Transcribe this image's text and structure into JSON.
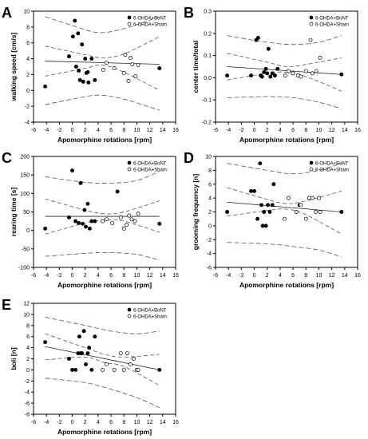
{
  "legend": {
    "bont": "6-OHDA+BoNT",
    "sham": "6-OHDA+Sham"
  },
  "colors": {
    "bont": "#000000",
    "sham": "#ffffff",
    "stroke": "#000000",
    "fit": "#222222",
    "ci": "#555555"
  },
  "chart_data": [
    {
      "type": "scatter",
      "panel": "A",
      "xlabel": "Apomorphine rotations [rpm]",
      "ylabel": "walking speed [cm/s]",
      "xlim": [
        -6,
        16
      ],
      "ylim": [
        -4,
        10
      ],
      "xticks": [
        -6,
        -4,
        -2,
        0,
        2,
        4,
        6,
        8,
        10,
        12,
        14,
        16
      ],
      "yticks": [
        -4,
        -2,
        0,
        2,
        4,
        6,
        8,
        10
      ],
      "ytick_labels": [
        "-4",
        "-2",
        "0",
        "2",
        "4",
        "6",
        "8",
        "10"
      ],
      "legend_position": "top-right",
      "series": [
        {
          "name": "6-OHDA+BoNT",
          "x": [
            -4.2,
            -0.5,
            0.1,
            0.4,
            0.6,
            0.9,
            1.0,
            1.2,
            1.5,
            1.7,
            2.0,
            2.2,
            2.4,
            2.5,
            3.0,
            3.5,
            13.5
          ],
          "y": [
            0.5,
            4.3,
            6.8,
            8.8,
            3.0,
            7.2,
            2.5,
            1.3,
            5.8,
            1.1,
            4.0,
            2.2,
            2.3,
            1.0,
            4.0,
            1.3,
            2.8
          ]
        },
        {
          "name": "6-OHDA+Sham",
          "x": [
            4.8,
            5.3,
            6.5,
            8.0,
            8.2,
            8.7,
            9.0,
            9.3,
            9.8,
            10.2
          ],
          "y": [
            2.6,
            3.5,
            2.8,
            2.2,
            4.5,
            1.2,
            4.1,
            3.3,
            1.8,
            3.2
          ]
        }
      ],
      "fit": [
        [
          -4.2,
          3.7
        ],
        [
          13.5,
          3.3
        ]
      ],
      "ci_upper": [
        [
          -4.2,
          9.3
        ],
        [
          0,
          8.2
        ],
        [
          4,
          7.3
        ],
        [
          8,
          7.8
        ],
        [
          13.5,
          9.3
        ]
      ],
      "ci_lower": [
        [
          -4.2,
          -1.8
        ],
        [
          0,
          -1.1
        ],
        [
          4,
          -0.6
        ],
        [
          8,
          -1.1
        ],
        [
          13.5,
          -2.5
        ]
      ],
      "mean_upper": [
        [
          -4.2,
          5.6
        ],
        [
          2,
          4.5
        ],
        [
          4.7,
          4.1
        ],
        [
          8,
          4.6
        ],
        [
          13.5,
          6.8
        ]
      ],
      "mean_lower": [
        [
          -4.2,
          1.8
        ],
        [
          2,
          2.8
        ],
        [
          4.7,
          3.2
        ],
        [
          8,
          2.3
        ],
        [
          13.5,
          0.0
        ]
      ]
    },
    {
      "type": "scatter",
      "panel": "B",
      "xlabel": "Apomorphine rotations [rpm]",
      "ylabel": "center time/total",
      "xlim": [
        -6,
        16
      ],
      "ylim": [
        -0.2,
        0.3
      ],
      "xticks": [
        -6,
        -4,
        -2,
        0,
        2,
        4,
        6,
        8,
        10,
        12,
        14,
        16
      ],
      "yticks": [
        -0.2,
        -0.1,
        0,
        0.1,
        0.2,
        0.3
      ],
      "ytick_labels": [
        "-0.2",
        "-0.1",
        "0.0",
        "0.1",
        "0.2",
        "0.3"
      ],
      "legend_position": "top-right",
      "series": [
        {
          "name": "6-OHDA+BoNT",
          "x": [
            -4.2,
            -0.5,
            0.3,
            0.6,
            1.0,
            1.2,
            1.5,
            1.8,
            2.0,
            2.2,
            2.5,
            2.8,
            3.2,
            3.6,
            13.5
          ],
          "y": [
            0.01,
            0.01,
            0.17,
            0.18,
            0.01,
            0.005,
            0.025,
            0.04,
            0.02,
            0.13,
            0.005,
            0.02,
            0.01,
            0.04,
            0.015
          ]
        },
        {
          "name": "6-OHDA+Sham",
          "x": [
            4.8,
            5.3,
            6.0,
            6.8,
            7.2,
            8.0,
            8.7,
            9.0,
            9.6,
            10.2
          ],
          "y": [
            0.01,
            0.03,
            0.02,
            0.01,
            0.005,
            0.03,
            0.17,
            0.02,
            0.03,
            0.09
          ]
        }
      ],
      "fit": [
        [
          -4.2,
          0.05
        ],
        [
          13.5,
          0.015
        ]
      ],
      "ci_upper": [
        [
          -4.2,
          0.19
        ],
        [
          2,
          0.16
        ],
        [
          6,
          0.15
        ],
        [
          10,
          0.16
        ],
        [
          13.5,
          0.19
        ]
      ],
      "ci_lower": [
        [
          -4.2,
          -0.09
        ],
        [
          2,
          -0.085
        ],
        [
          6,
          -0.09
        ],
        [
          10,
          -0.11
        ],
        [
          13.5,
          -0.14
        ]
      ],
      "mean_upper": [
        [
          -4.2,
          0.11
        ],
        [
          2,
          0.07
        ],
        [
          5,
          0.05
        ],
        [
          8,
          0.06
        ],
        [
          13.5,
          0.09
        ]
      ],
      "mean_lower": [
        [
          -4.2,
          -0.01
        ],
        [
          2,
          0.02
        ],
        [
          5,
          0.025
        ],
        [
          8,
          0.005
        ],
        [
          13.5,
          -0.06
        ]
      ]
    },
    {
      "type": "scatter",
      "panel": "C",
      "xlabel": "Apomorphine rotations [rpm]",
      "ylabel": "rearing time [s]",
      "xlim": [
        -6,
        16
      ],
      "ylim": [
        -100,
        200
      ],
      "xticks": [
        -6,
        -4,
        -2,
        0,
        2,
        4,
        6,
        8,
        10,
        12,
        14,
        16
      ],
      "yticks": [
        -100,
        -50,
        0,
        50,
        100,
        150,
        200
      ],
      "ytick_labels": [
        "-100",
        "-50",
        "0",
        "50",
        "100",
        "150",
        "200"
      ],
      "legend_position": "top-right",
      "series": [
        {
          "name": "6-OHDA+BoNT",
          "x": [
            -4.2,
            -0.5,
            0.0,
            0.5,
            1.0,
            1.3,
            1.6,
            1.9,
            2.1,
            2.4,
            2.7,
            3.0,
            3.5,
            7.0,
            13.5
          ],
          "y": [
            5,
            35,
            162,
            25,
            20,
            128,
            18,
            55,
            10,
            72,
            5,
            25,
            25,
            105,
            18
          ]
        },
        {
          "name": "6-OHDA+Sham",
          "x": [
            4.7,
            5.3,
            6.2,
            7.5,
            8.0,
            8.4,
            8.8,
            9.2,
            9.7,
            10.2
          ],
          "y": [
            25,
            30,
            20,
            35,
            5,
            15,
            40,
            30,
            25,
            45
          ]
        }
      ],
      "fit": [
        [
          -4.2,
          38
        ],
        [
          13.5,
          38
        ]
      ],
      "ci_upper": [
        [
          -4.2,
          145
        ],
        [
          2,
          130
        ],
        [
          6,
          128
        ],
        [
          10,
          135
        ],
        [
          13.5,
          160
        ]
      ],
      "ci_lower": [
        [
          -4.2,
          -70
        ],
        [
          2,
          -62
        ],
        [
          6,
          -60
        ],
        [
          10,
          -65
        ],
        [
          13.5,
          -80
        ]
      ],
      "mean_upper": [
        [
          -4.2,
          85
        ],
        [
          2,
          55
        ],
        [
          5,
          45
        ],
        [
          8,
          50
        ],
        [
          13.5,
          80
        ]
      ],
      "mean_lower": [
        [
          -4.2,
          -10
        ],
        [
          2,
          20
        ],
        [
          5,
          28
        ],
        [
          8,
          25
        ],
        [
          13.5,
          -5
        ]
      ]
    },
    {
      "type": "scatter",
      "panel": "D",
      "xlabel": "Apomorphine rotations [rpm]",
      "ylabel": "grooming frequency [n]",
      "xlim": [
        -6,
        16
      ],
      "ylim": [
        -6,
        10
      ],
      "xticks": [
        -6,
        -4,
        -2,
        0,
        2,
        4,
        6,
        8,
        10,
        12,
        14,
        16
      ],
      "yticks": [
        -6,
        -4,
        -2,
        0,
        2,
        4,
        6,
        8,
        10
      ],
      "ytick_labels": [
        "-6",
        "-4",
        "-2",
        "0",
        "2",
        "4",
        "6",
        "8",
        "10"
      ],
      "legend_position": "top-right",
      "series": [
        {
          "name": "6-OHDA+BoNT",
          "x": [
            -4.2,
            -0.5,
            0.0,
            0.5,
            0.9,
            1.1,
            1.3,
            1.5,
            1.8,
            2.1,
            2.4,
            2.8,
            3.0,
            7.0,
            13.5
          ],
          "y": [
            2,
            5,
            5,
            1,
            9,
            3,
            0,
            2,
            0,
            3,
            2,
            3,
            6,
            3,
            2
          ]
        },
        {
          "name": "6-OHDA+Sham",
          "x": [
            4.7,
            5.3,
            6.5,
            7.2,
            8.0,
            8.5,
            9.0,
            9.5,
            10.0,
            10.2
          ],
          "y": [
            1,
            4,
            2,
            3,
            1,
            4,
            4,
            2,
            4,
            2
          ]
        }
      ],
      "fit": [
        [
          -4.2,
          3.4
        ],
        [
          13.5,
          2.0
        ]
      ],
      "ci_upper": [
        [
          -4.2,
          9.0
        ],
        [
          2,
          8.0
        ],
        [
          6,
          7.5
        ],
        [
          10,
          8.0
        ],
        [
          13.5,
          9.0
        ]
      ],
      "ci_lower": [
        [
          -4.2,
          -2.4
        ],
        [
          2,
          -2.6
        ],
        [
          6,
          -3.0
        ],
        [
          10,
          -3.5
        ],
        [
          13.5,
          -4.5
        ]
      ],
      "mean_upper": [
        [
          -4.2,
          5.5
        ],
        [
          2,
          3.8
        ],
        [
          5,
          3.2
        ],
        [
          8,
          3.6
        ],
        [
          13.5,
          5.0
        ]
      ],
      "mean_lower": [
        [
          -4.2,
          1.4
        ],
        [
          2,
          2.2
        ],
        [
          5,
          2.4
        ],
        [
          8,
          1.6
        ],
        [
          13.5,
          -1.2
        ]
      ]
    },
    {
      "type": "scatter",
      "panel": "E",
      "xlabel": "Apomorphine rotations [rpm]",
      "ylabel": "boli [n]",
      "xlim": [
        -6,
        16
      ],
      "ylim": [
        -8,
        12
      ],
      "xticks": [
        -6,
        -4,
        -2,
        0,
        2,
        4,
        6,
        8,
        10,
        12,
        14,
        16
      ],
      "yticks": [
        -8,
        -6,
        -4,
        -2,
        0,
        2,
        4,
        6,
        8,
        10,
        12
      ],
      "ytick_labels": [
        "-8",
        "-6",
        "-4",
        "-2",
        "0",
        "2",
        "4",
        "6",
        "8",
        "10",
        "12"
      ],
      "legend_position": "top-right",
      "series": [
        {
          "name": "6-OHDA+BoNT",
          "x": [
            -4.2,
            -0.5,
            0.0,
            0.5,
            0.9,
            1.1,
            1.3,
            1.5,
            1.8,
            2.1,
            2.4,
            2.6,
            3.0,
            3.5,
            13.5
          ],
          "y": [
            5,
            2,
            0,
            0,
            3,
            6,
            3,
            3,
            7,
            1,
            3,
            4,
            0,
            6,
            0
          ]
        },
        {
          "name": "6-OHDA+Sham",
          "x": [
            4.7,
            5.3,
            6.5,
            7.5,
            8.0,
            8.5,
            9.0,
            9.5,
            10.0,
            10.2
          ],
          "y": [
            0,
            1,
            0,
            3,
            0,
            3,
            1,
            2,
            0,
            0
          ]
        }
      ],
      "fit": [
        [
          -4.2,
          4.2
        ],
        [
          13.5,
          0.0
        ]
      ],
      "ci_upper": [
        [
          -4.2,
          9.5
        ],
        [
          2,
          8.0
        ],
        [
          6,
          7.0
        ],
        [
          10,
          6.5
        ],
        [
          13.5,
          7.0
        ]
      ],
      "ci_lower": [
        [
          -4.2,
          -1.5
        ],
        [
          2,
          -2.3
        ],
        [
          6,
          -3.5
        ],
        [
          10,
          -5.0
        ],
        [
          13.5,
          -6.8
        ]
      ],
      "mean_upper": [
        [
          -4.2,
          6.5
        ],
        [
          2,
          4.0
        ],
        [
          5,
          2.8
        ],
        [
          8,
          2.3
        ],
        [
          13.5,
          2.8
        ]
      ],
      "mean_lower": [
        [
          -4.2,
          1.8
        ],
        [
          2,
          2.3
        ],
        [
          5,
          1.3
        ],
        [
          8,
          0.6
        ],
        [
          13.5,
          -2.8
        ]
      ]
    }
  ]
}
